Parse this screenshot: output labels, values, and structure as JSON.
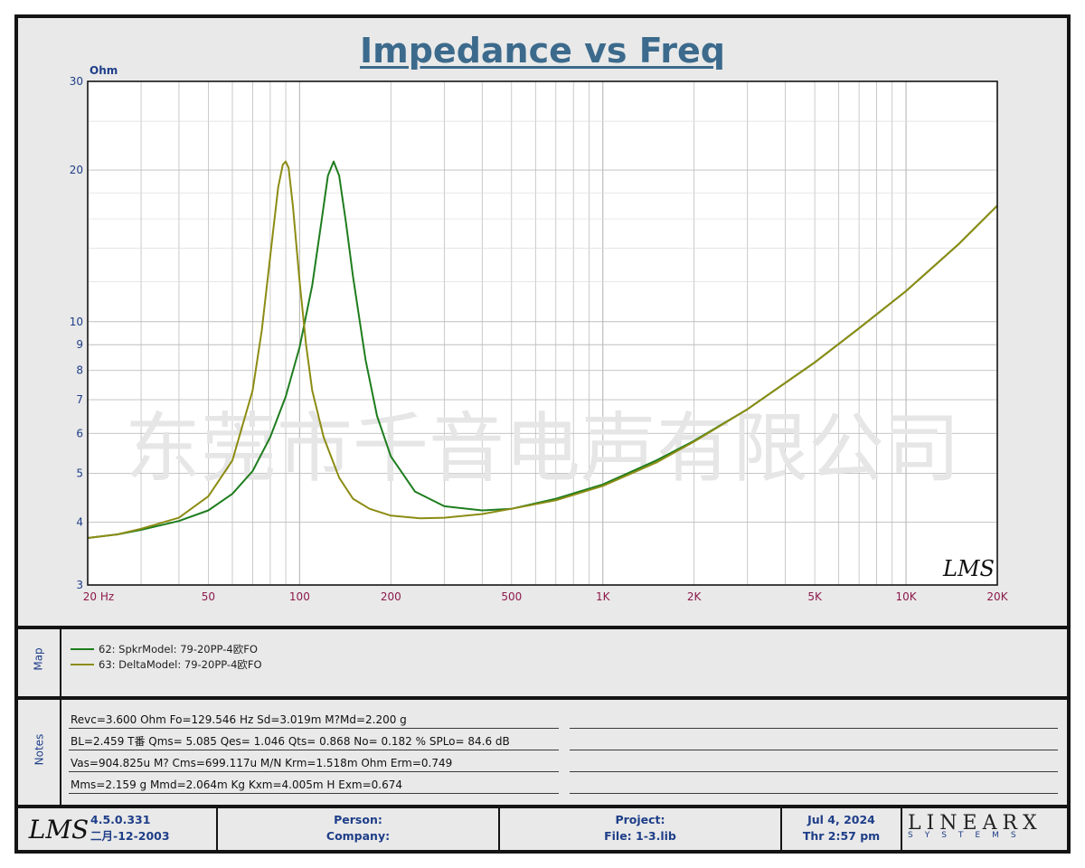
{
  "title": "Impedance vs Freq",
  "watermark": "东莞市千音电声有限公司",
  "chart_data": {
    "type": "line",
    "title": "Impedance vs Freq",
    "ylabel": "Ohm",
    "xlabel": "Hz",
    "x_scale": "log",
    "y_scale": "log",
    "xlim": [
      20,
      20000
    ],
    "ylim": [
      3,
      30
    ],
    "x_tick_values": [
      20,
      50,
      100,
      200,
      500,
      1000,
      2000,
      5000,
      10000,
      20000
    ],
    "x_tick_labels": [
      "20  Hz",
      "50",
      "100",
      "200",
      "500",
      "1K",
      "2K",
      "5K",
      "10K",
      "20K"
    ],
    "y_tick_values": [
      30,
      20,
      10,
      9,
      8,
      7,
      6,
      5,
      4,
      3
    ],
    "y_tick_labels": [
      "30",
      "20",
      "10",
      "9",
      "8",
      "7",
      "6",
      "5",
      "4",
      "3"
    ],
    "grid": true,
    "series": [
      {
        "name": "62: SpkrModel: 79-20PP-4欧FO",
        "color": "#1e7d1e",
        "x": [
          20,
          25,
          30,
          40,
          50,
          60,
          70,
          80,
          90,
          100,
          110,
          118,
          124,
          129.5,
          135,
          142,
          150,
          165,
          180,
          200,
          240,
          300,
          400,
          500,
          700,
          1000,
          1500,
          2000,
          3000,
          5000,
          7000,
          10000,
          15000,
          20000
        ],
        "y": [
          3.72,
          3.78,
          3.86,
          4.02,
          4.22,
          4.55,
          5.05,
          5.9,
          7.1,
          8.9,
          11.8,
          15.8,
          19.5,
          20.8,
          19.5,
          15.8,
          12.3,
          8.4,
          6.5,
          5.4,
          4.6,
          4.3,
          4.22,
          4.25,
          4.45,
          4.75,
          5.3,
          5.8,
          6.7,
          8.3,
          9.7,
          11.5,
          14.3,
          17.0
        ]
      },
      {
        "name": "63: DeltaModel: 79-20PP-4欧FO",
        "color": "#8c8c14",
        "x": [
          20,
          25,
          30,
          40,
          50,
          60,
          70,
          75,
          80,
          85,
          88,
          90,
          92,
          95,
          100,
          105,
          110,
          120,
          135,
          150,
          170,
          200,
          250,
          300,
          400,
          500,
          700,
          1000,
          1500,
          2000,
          3000,
          5000,
          7000,
          10000,
          15000,
          20000
        ],
        "y": [
          3.72,
          3.78,
          3.88,
          4.08,
          4.5,
          5.3,
          7.3,
          9.6,
          13.5,
          18.5,
          20.5,
          20.8,
          20.2,
          17.0,
          12.0,
          9.0,
          7.3,
          5.9,
          4.9,
          4.45,
          4.25,
          4.12,
          4.07,
          4.08,
          4.15,
          4.25,
          4.42,
          4.72,
          5.25,
          5.78,
          6.7,
          8.3,
          9.7,
          11.5,
          14.3,
          17.0
        ]
      }
    ],
    "legend": [
      "62: SpkrModel: 79-20PP-4欧FO",
      "63: DeltaModel: 79-20PP-4欧FO"
    ],
    "annotations": [
      "LMS"
    ]
  },
  "map": {
    "label": "Map",
    "items": [
      {
        "label": "62: SpkrModel: 79-20PP-4欧FO",
        "color": "#1e7d1e"
      },
      {
        "label": "63: DeltaModel: 79-20PP-4欧FO",
        "color": "#8c8c14"
      }
    ]
  },
  "notes": {
    "label": "Notes",
    "lines": [
      "Revc=3.600 Ohm  Fo=129.546 Hz  Sd=3.019m M?Md=2.200 g",
      "BL=2.459 T番  Qms= 5.085  Qes= 1.046  Qts= 0.868  No= 0.182 %  SPLo= 84.6 dB",
      "Vas=904.825u M? Cms=699.117u M/N  Krm=1.518m Ohm  Erm=0.749",
      "Mms=2.159 g  Mmd=2.064m Kg  Kxm=4.005m H  Exm=0.674"
    ]
  },
  "footer": {
    "logo": "LMS",
    "version": "4.5.0.331",
    "build_date": "二月-12-2003",
    "person_label": "Person:",
    "company_label": "Company:",
    "project_label": "Project:",
    "file_label": "File: 1-3.lib",
    "date": "Jul  4, 2024",
    "time": "Thr  2:57 pm",
    "brand": "LINEARX",
    "brand_sub": "SYSTEMS"
  },
  "colors": {
    "title": "#3c6a8c",
    "tick_x": "#8c1a4a",
    "tick_y": "#1e3e88",
    "grid": "#bdbdbd"
  }
}
